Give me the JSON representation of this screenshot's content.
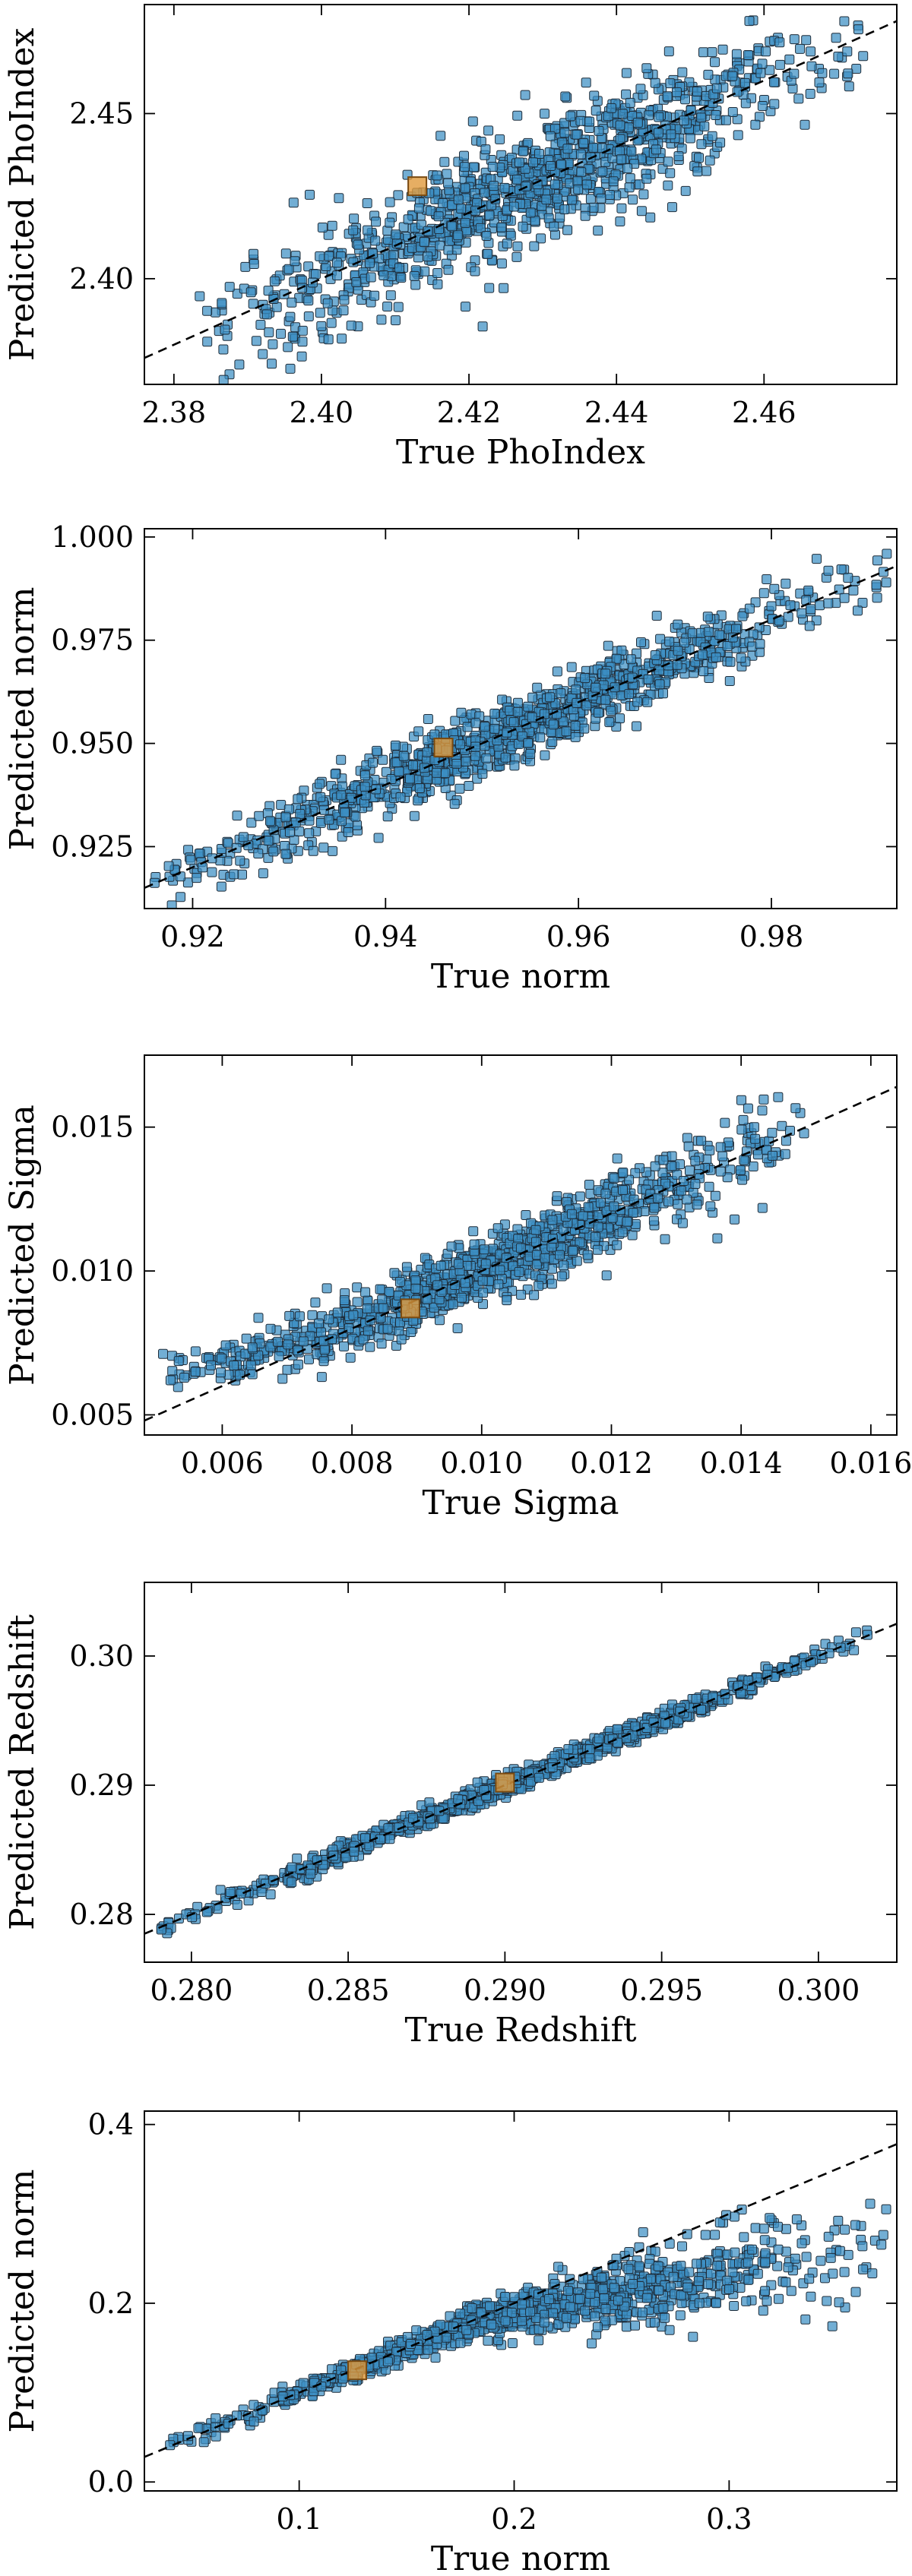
{
  "colors": {
    "points": "#3b8fc4",
    "point_edge": "#1f2d3a",
    "highlight": "#e09a3c",
    "reference_line": "#000000"
  },
  "chart_data": [
    {
      "type": "scatter",
      "xlabel": "True PhoIndex",
      "ylabel": "Predicted PhoIndex",
      "xlim": [
        2.376,
        2.478
      ],
      "ylim": [
        2.368,
        2.483
      ],
      "xticks": [
        "2.38",
        "2.40",
        "2.42",
        "2.44",
        "2.46"
      ],
      "yticks": [
        "2.40",
        "2.45"
      ],
      "reference_line": "y = x",
      "highlight_point": [
        2.413,
        2.428
      ],
      "point_cloud": {
        "count": 1100,
        "x_range": [
          2.383,
          2.475
        ],
        "y_range": [
          2.383,
          2.472
        ],
        "trend": "y ≈ x",
        "scatter_sd": 0.009
      }
    },
    {
      "type": "scatter",
      "xlabel": "True norm",
      "ylabel": "Predicted norm",
      "xlim": [
        0.915,
        0.993
      ],
      "ylim": [
        0.91,
        1.002
      ],
      "xticks": [
        "0.92",
        "0.94",
        "0.96",
        "0.98"
      ],
      "yticks": [
        "0.925",
        "0.950",
        "0.975",
        "1.000"
      ],
      "reference_line": "y = x",
      "highlight_point": [
        0.946,
        0.949
      ],
      "point_cloud": {
        "count": 1100,
        "x_range": [
          0.916,
          0.992
        ],
        "y_range": [
          0.921,
          0.992
        ],
        "trend": "y ≈ x",
        "scatter_sd": 0.004
      }
    },
    {
      "type": "scatter",
      "xlabel": "True Sigma",
      "ylabel": "Predicted Sigma",
      "xlim": [
        0.0048,
        0.0164
      ],
      "ylim": [
        0.0043,
        0.0175
      ],
      "xticks": [
        "0.006",
        "0.008",
        "0.010",
        "0.012",
        "0.014",
        "0.016"
      ],
      "yticks": [
        "0.005",
        "0.010",
        "0.015"
      ],
      "reference_line": "y = x",
      "highlight_point": [
        0.0089,
        0.0087
      ],
      "point_cloud": {
        "count": 1100,
        "x_range": [
          0.005,
          0.015
        ],
        "y_range": [
          0.0055,
          0.0163
        ],
        "trend": "y ≈ x (slightly above at low end)",
        "scatter_sd": 0.0006
      }
    },
    {
      "type": "scatter",
      "xlabel": "True Redshift",
      "ylabel": "Predicted Redshift",
      "xlim": [
        0.2785,
        0.3025
      ],
      "ylim": [
        0.2763,
        0.3057
      ],
      "xticks": [
        "0.280",
        "0.285",
        "0.290",
        "0.295",
        "0.300"
      ],
      "yticks": [
        "0.28",
        "0.29",
        "0.30"
      ],
      "reference_line": "y = x",
      "highlight_point": [
        0.29,
        0.2902
      ],
      "point_cloud": {
        "count": 900,
        "x_range": [
          0.279,
          0.302
        ],
        "y_range": [
          0.278,
          0.303
        ],
        "trend": "y ≈ x",
        "scatter_sd": 0.0004
      }
    },
    {
      "type": "scatter",
      "xlabel": "True norm",
      "ylabel": "Predicted norm",
      "xlim": [
        0.028,
        0.378
      ],
      "ylim": [
        -0.01,
        0.415
      ],
      "xticks": [
        "0.1",
        "0.2",
        "0.3"
      ],
      "yticks": [
        "0.0",
        "0.2",
        "0.4"
      ],
      "reference_line": "y = x",
      "highlight_point": [
        0.127,
        0.125
      ],
      "point_cloud": {
        "count": 1100,
        "x_range": [
          0.038,
          0.375
        ],
        "y_range": [
          0.03,
          0.3
        ],
        "trend": "y ≈ x, underpredicted above 0.2",
        "scatter_sd": 0.01
      }
    }
  ]
}
